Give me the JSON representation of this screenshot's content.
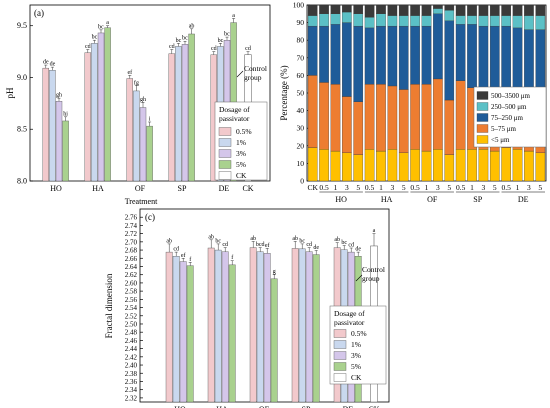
{
  "colors": {
    "p05": "#f2c9cc",
    "p1": "#c9d8ee",
    "p3": "#d4c6ea",
    "p5": "#a9d18e",
    "ck": "#ffffff",
    "s_lt5": "#ffc000",
    "s_5_75": "#ed7d31",
    "s_75_250": "#1f5c99",
    "s_250_500": "#5bc0c6",
    "s_500_3500": "#3a3a3a"
  },
  "chart_data": [
    {
      "type": "bar",
      "panel_label": "(a)",
      "ylabel": "pH",
      "xlabel": "Treatment",
      "ylim": [
        8.0,
        9.7
      ],
      "yticks": [
        "8.0",
        "8.5",
        "9.0",
        "9.5"
      ],
      "categories": [
        "HO",
        "HA",
        "OF",
        "SP",
        "DE"
      ],
      "series": [
        {
          "name": "0.5%",
          "values": [
            9.09,
            9.24,
            8.99,
            9.23,
            9.22
          ],
          "errors": [
            0.03,
            0.03,
            0.03,
            0.04,
            0.03
          ],
          "letters": [
            "de",
            "cd",
            "ef",
            "cd",
            "cd"
          ]
        },
        {
          "name": "1%",
          "values": [
            9.07,
            9.33,
            8.87,
            9.3,
            9.3
          ],
          "errors": [
            0.03,
            0.03,
            0.05,
            0.03,
            0.03
          ],
          "letters": [
            "de",
            "bc",
            "fg",
            "bc",
            "bc"
          ]
        },
        {
          "name": "3%",
          "values": [
            8.77,
            9.43,
            8.71,
            9.32,
            9.36
          ],
          "errors": [
            0.03,
            0.03,
            0.05,
            0.03,
            0.03
          ],
          "letters": [
            "gh",
            "bc",
            "gh",
            "bc",
            "bc"
          ]
        },
        {
          "name": "5%",
          "values": [
            8.58,
            9.48,
            8.53,
            9.42,
            9.53
          ],
          "errors": [
            0.04,
            0.02,
            0.04,
            0.05,
            0.04
          ],
          "letters": [
            "hi",
            "a",
            "i",
            "ab",
            "a"
          ]
        }
      ],
      "control": {
        "category": "CK",
        "value": 9.22,
        "error": 0.03,
        "letter": "cd",
        "annotation": [
          "Control",
          "group"
        ]
      },
      "legend": {
        "title": [
          "Dosage of",
          "passivator"
        ],
        "entries": [
          "0.5%",
          "1%",
          "3%",
          "5%",
          "CK"
        ],
        "position": "right"
      }
    },
    {
      "type": "bar",
      "stacked": true,
      "ylabel": "Percentage (%)",
      "ylim": [
        0,
        100
      ],
      "yticks": [
        "0",
        "10",
        "20",
        "30",
        "40",
        "50",
        "60",
        "70",
        "80",
        "90",
        "100"
      ],
      "categories": [
        "CK",
        "0.5",
        "1",
        "3",
        "5",
        "0.5",
        "1",
        "3",
        "5",
        "0.5",
        "1",
        "3",
        "5",
        "0.5",
        "1",
        "3",
        "5",
        "0.5",
        "1",
        "3",
        "5"
      ],
      "groups": [
        "HO",
        "HA",
        "OF",
        "SP",
        "DE"
      ],
      "series": [
        {
          "name": "<5 μm",
          "values": [
            19,
            18,
            17,
            16,
            15,
            18,
            17,
            18,
            16,
            18,
            17,
            18,
            15,
            18,
            18,
            18,
            17,
            19,
            18,
            17,
            16
          ]
        },
        {
          "name": "5–75 μm",
          "values": [
            41,
            38,
            38,
            32,
            30,
            37,
            38,
            36,
            36,
            37,
            38,
            40,
            31,
            39,
            35,
            34,
            33,
            32,
            33,
            32,
            30
          ]
        },
        {
          "name": "75–250 μm",
          "values": [
            28,
            32,
            34,
            42,
            43,
            32,
            33,
            34,
            36,
            33,
            33,
            37,
            45,
            32,
            36,
            36,
            38,
            37,
            36,
            37,
            40
          ]
        },
        {
          "name": "250–500 μm",
          "values": [
            6,
            7,
            6,
            6,
            7,
            6,
            7,
            6,
            6,
            6,
            6,
            3,
            6,
            5,
            5,
            6,
            6,
            6,
            7,
            8,
            8
          ]
        },
        {
          "name": "500–3500 μm",
          "values": [
            6,
            5,
            5,
            4,
            5,
            7,
            5,
            6,
            6,
            6,
            6,
            2,
            3,
            6,
            6,
            6,
            6,
            6,
            6,
            6,
            6
          ]
        }
      ],
      "legend": {
        "entries": [
          "500–3500 μm",
          "250–500 μm",
          "75–250 μm",
          "5–75 μm",
          "<5 μm"
        ],
        "position": "right"
      }
    },
    {
      "type": "bar",
      "panel_label": "(c)",
      "ylabel": "Fractal dimension",
      "ylim": [
        2.31,
        2.78
      ],
      "yticks": [
        "2.32",
        "2.34",
        "2.36",
        "2.38",
        "2.40",
        "2.42",
        "2.44",
        "2.46",
        "2.48",
        "2.50",
        "2.52",
        "2.54",
        "2.56",
        "2.58",
        "2.60",
        "2.62",
        "2.64",
        "2.66",
        "2.68",
        "2.70",
        "2.72",
        "2.74",
        "2.76"
      ],
      "categories": [
        "HO",
        "HA",
        "OF",
        "SP",
        "DE"
      ],
      "series": [
        {
          "name": "0.5%",
          "values": [
            2.675,
            2.685,
            2.686,
            2.684,
            2.686
          ],
          "errors": [
            0.02,
            0.02,
            0.015,
            0.017,
            0.012
          ],
          "letters": [
            "ab",
            "ab",
            "ab",
            "ab",
            "ab"
          ]
        },
        {
          "name": "1%",
          "values": [
            2.665,
            2.68,
            2.676,
            2.683,
            2.681
          ],
          "errors": [
            0.01,
            0.015,
            0.01,
            0.012,
            0.01
          ],
          "letters": [
            "cd",
            "bc",
            "bcd",
            "bc",
            "bc"
          ]
        },
        {
          "name": "3%",
          "values": [
            2.652,
            2.676,
            2.672,
            2.676,
            2.675
          ],
          "errors": [
            0.008,
            0.01,
            0.012,
            0.01,
            0.01
          ],
          "letters": [
            "ef",
            "cd",
            "ef",
            "cd",
            "cd"
          ]
        },
        {
          "name": "5%",
          "values": [
            2.642,
            2.644,
            2.61,
            2.669,
            2.665
          ],
          "errors": [
            0.008,
            0.01,
            0.01,
            0.01,
            0.01
          ],
          "letters": [
            "f",
            "f",
            "g",
            "de",
            "de"
          ]
        }
      ],
      "control": {
        "category": "CK",
        "value": 2.69,
        "error": 0.03,
        "letter": "a",
        "annotation": [
          "Control",
          "group"
        ]
      },
      "legend": {
        "title": [
          "Dosage of",
          "passivator"
        ],
        "entries": [
          "0.5%",
          "1%",
          "3%",
          "5%",
          "CK"
        ],
        "position": "right"
      }
    }
  ]
}
